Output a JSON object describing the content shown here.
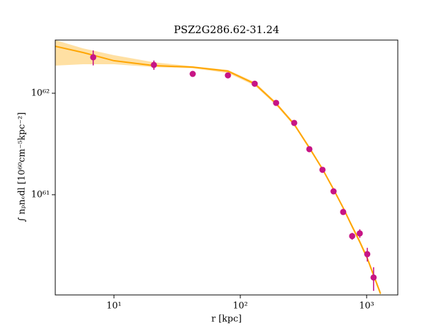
{
  "chart_data": {
    "type": "scatter",
    "title": "PSZ2G286.62-31.24",
    "xlabel": "r [kpc]",
    "ylabel": "∫ nₚnₑdl [10⁶⁰cm⁻⁵kpc⁻²]",
    "xlog": true,
    "ylog": true,
    "xlim": [
      3.43,
      1764
    ],
    "ylim": [
      1.03e+60,
      3.34e+62
    ],
    "xticks": [
      {
        "value": 10,
        "label": "10¹"
      },
      {
        "value": 100,
        "label": "10²"
      },
      {
        "value": 1000,
        "label": "10³"
      }
    ],
    "yticks": [
      {
        "value": 1e+61,
        "label": "10⁶¹"
      },
      {
        "value": 1e+62,
        "label": "10⁶²"
      }
    ],
    "points": {
      "color": "#c71585",
      "x": [
        6.85,
        20.7,
        42.0,
        79.8,
        130,
        192,
        267,
        352,
        447,
        547,
        652,
        768,
        882,
        1011,
        1135
      ],
      "y": [
        2.26e+62,
        1.9e+62,
        1.55e+62,
        1.5e+62,
        1.24e+62,
        8.03e+61,
        5.1e+61,
        2.81e+61,
        1.76e+61,
        1.08e+61,
        6.76e+60,
        3.91e+60,
        4.16e+60,
        2.6e+60,
        1.53e+60
      ],
      "yerr": [
        3.8e+61,
        2e+61,
        5e+60,
        3e+60,
        4e+60,
        3e+60,
        2e+60,
        1e+60,
        8e+59,
        5e+59,
        4e+59,
        3e+59,
        4e+59,
        4e+59,
        4e+59
      ]
    },
    "model": {
      "color": "#ffa500",
      "band_color": "#ffcc66",
      "x": [
        3.43,
        5.68,
        10,
        20.7,
        42.0,
        79.8,
        130,
        192,
        267,
        352,
        447,
        547,
        652,
        768,
        882,
        1011,
        1131,
        1288
      ],
      "y": [
        2.9e+62,
        2.52e+62,
        2.09e+62,
        1.87e+62,
        1.81e+62,
        1.65e+62,
        1.24e+62,
        7.91e+61,
        4.94e+61,
        2.9e+61,
        1.79e+61,
        1.13e+61,
        7.43e+60,
        4.86e+60,
        3.44e+60,
        2.37e+60,
        1.63e+60,
        1.06e+60
      ],
      "lower": [
        1.87e+62,
        1.93e+62,
        1.93e+62,
        1.81e+62,
        1.76e+62,
        1.58e+62,
        1.19e+62,
        7.6e+61,
        4.76e+61,
        2.8e+61,
        1.73e+61,
        1.09e+61,
        7.15e+60,
        4.65e+60,
        3.28e+60,
        2.25e+60,
        1.54e+60,
        1e+60
      ],
      "upper": [
        3.34e+62,
        2.77e+62,
        2.37e+62,
        2.02e+62,
        1.84e+62,
        1.7e+62,
        1.29e+62,
        8.2e+61,
        5.12e+61,
        3e+61,
        1.85e+61,
        1.17e+61,
        7.7e+60,
        5.07e+60,
        3.6e+60,
        2.49e+60,
        1.72e+60,
        1.12e+60
      ]
    }
  }
}
